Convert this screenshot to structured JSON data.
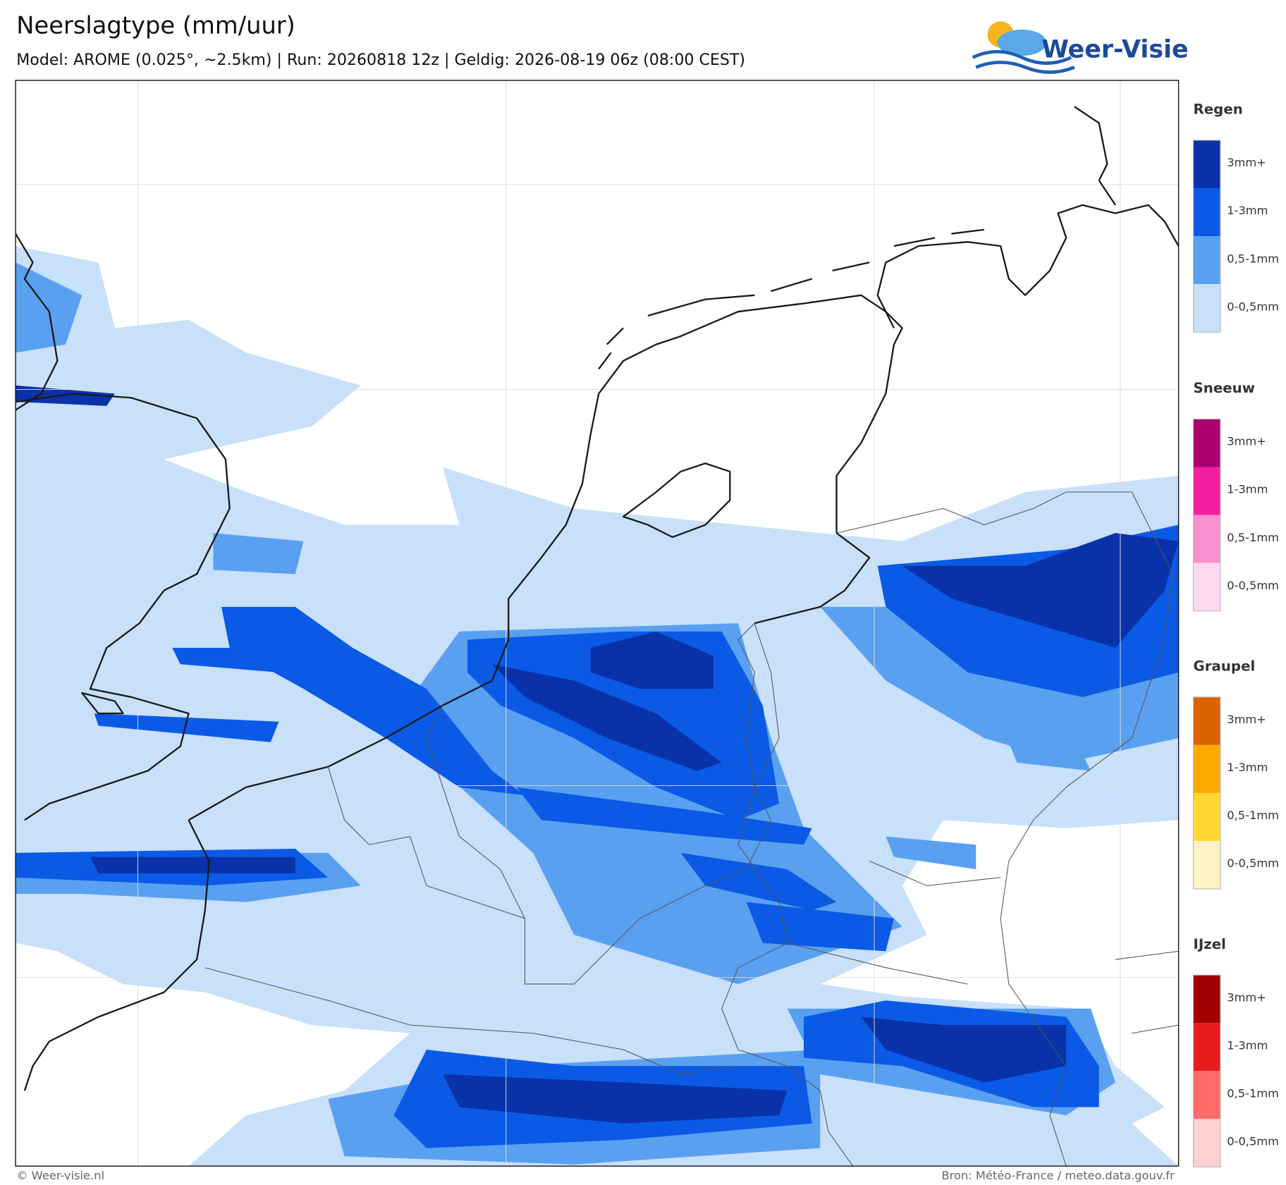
{
  "header": {
    "title": "Neerslagtype (mm/uur)",
    "subtitle": "Model: AROME (0.025°, ~2.5km)  |  Run: 20260818 12z  |  Geldig: 2026-08-19 06z (08:00 CEST)",
    "logo": "Weer-Visie"
  },
  "legend": [
    {
      "title": "Regen",
      "labels": [
        "3mm+",
        "1-3mm",
        "0,5-1mm",
        "0-0,5mm"
      ],
      "colors": [
        "#0a32a8",
        "#0a5ae6",
        "#5aa0f0",
        "#c8e0fa"
      ]
    },
    {
      "title": "Sneeuw",
      "labels": [
        "3mm+",
        "1-3mm",
        "0,5-1mm",
        "0-0,5mm"
      ],
      "colors": [
        "#a8006e",
        "#f020a0",
        "#f890d0",
        "#fdd8f0"
      ]
    },
    {
      "title": "Graupel",
      "labels": [
        "3mm+",
        "1-3mm",
        "0,5-1mm",
        "0-0,5mm"
      ],
      "colors": [
        "#dc6400",
        "#ffaa00",
        "#ffd836",
        "#fff2c4"
      ]
    },
    {
      "title": "IJzel",
      "labels": [
        "3mm+",
        "1-3mm",
        "0,5-1mm",
        "0-0,5mm"
      ],
      "colors": [
        "#a00000",
        "#e81c1c",
        "#ff6a6a",
        "#ffd0d0"
      ]
    }
  ],
  "footer": {
    "left": "© Weer-visie.nl",
    "right": "Bron: Météo-France / meteo.data.gouv.fr"
  }
}
